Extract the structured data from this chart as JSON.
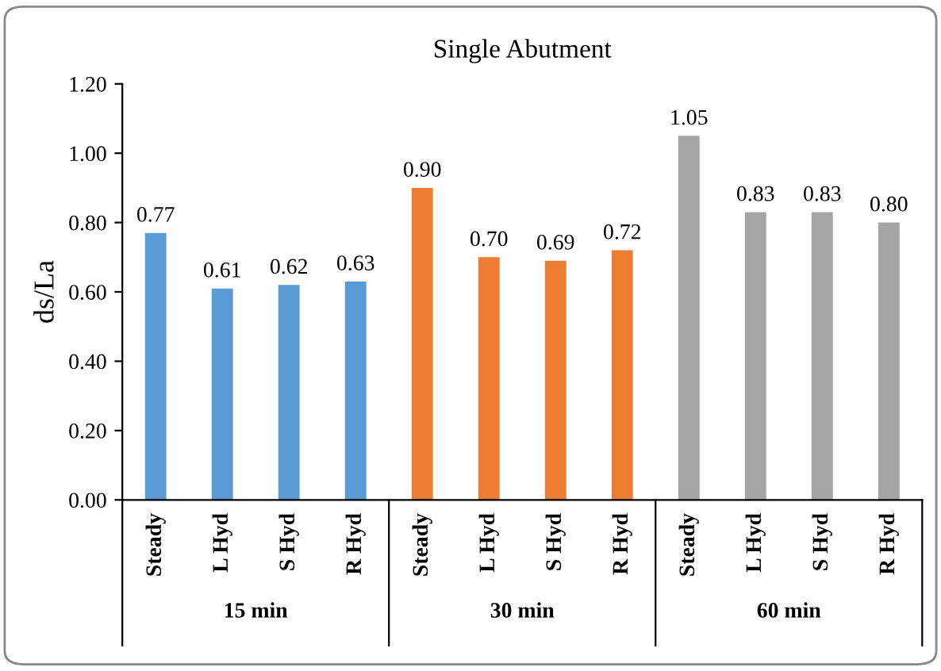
{
  "chart_data": {
    "type": "bar",
    "title": "Single Abutment",
    "ylabel": "ds/La",
    "categories": [
      "Steady",
      "L Hyd",
      "S Hyd",
      "R Hyd",
      "Steady",
      "L Hyd",
      "S Hyd",
      "R Hyd",
      "Steady",
      "L Hyd",
      "S Hyd",
      "R Hyd"
    ],
    "series": [
      {
        "color": "#5b9bd5",
        "values": [
          0.77,
          0.61,
          0.62,
          0.63,
          null,
          null,
          null,
          null,
          null,
          null,
          null,
          null
        ],
        "value_labels": [
          "0.77",
          "0.61",
          "0.62",
          "0.63",
          null,
          null,
          null,
          null,
          null,
          null,
          null,
          null
        ]
      },
      {
        "color": "#ed7d31",
        "values": [
          null,
          null,
          null,
          null,
          0.9,
          0.7,
          0.69,
          0.72,
          null,
          null,
          null,
          null
        ],
        "value_labels": [
          null,
          null,
          null,
          null,
          "0.90",
          "0.70",
          "0.69",
          "0.72",
          null,
          null,
          null,
          null
        ]
      },
      {
        "color": "#a5a5a5",
        "values": [
          null,
          null,
          null,
          null,
          null,
          null,
          null,
          null,
          1.05,
          0.83,
          0.83,
          0.8
        ],
        "value_labels": [
          null,
          null,
          null,
          null,
          null,
          null,
          null,
          null,
          "1.05",
          "0.83",
          "0.83",
          "0.80"
        ]
      }
    ],
    "ylim": [
      0,
      1.2
    ],
    "yticks": [
      {
        "value": 0,
        "label": "0.00"
      },
      {
        "value": 0.2,
        "label": "0.20"
      },
      {
        "value": 0.4,
        "label": "0.40"
      },
      {
        "value": 0.6,
        "label": "0.60"
      },
      {
        "value": 0.8,
        "label": "0.80"
      },
      {
        "value": 1.0,
        "label": "1.00"
      },
      {
        "value": 1.2,
        "label": "1.20"
      }
    ],
    "annotations": [
      "15 min",
      "30 min",
      "60 min"
    ],
    "grid": false,
    "legend": false
  }
}
